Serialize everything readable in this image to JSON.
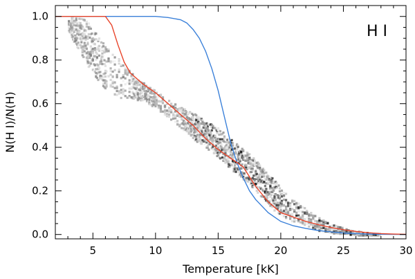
{
  "chart_data": {
    "type": "line",
    "title": "",
    "species_label": "H I",
    "xlabel": "Temperature [kK]",
    "ylabel": "N(H I)/N(H)",
    "xlim": [
      2,
      30
    ],
    "ylim": [
      -0.02,
      1.05
    ],
    "x_ticks": [
      5,
      10,
      15,
      20,
      25,
      30
    ],
    "y_ticks": [
      0.0,
      0.2,
      0.4,
      0.6,
      0.8,
      1.0
    ],
    "x_tick_labels": [
      "5",
      "10",
      "15",
      "20",
      "25",
      "30"
    ],
    "y_tick_labels": [
      "0.0",
      "0.2",
      "0.4",
      "0.6",
      "0.8",
      "1.0"
    ],
    "grid": false,
    "legend": "none",
    "series": [
      {
        "color": "#3a80d9",
        "x": [
          2.0,
          4,
          6,
          8,
          10,
          11,
          12,
          12.5,
          13,
          13.5,
          14,
          14.5,
          15,
          15.5,
          16,
          16.5,
          17,
          17.5,
          18,
          19,
          20,
          21,
          22,
          23,
          24,
          25,
          26,
          27,
          28,
          29,
          30
        ],
        "y": [
          1.0,
          1.0,
          1.0,
          1.0,
          1.0,
          0.995,
          0.985,
          0.97,
          0.94,
          0.9,
          0.84,
          0.76,
          0.66,
          0.54,
          0.42,
          0.33,
          0.26,
          0.2,
          0.16,
          0.1,
          0.06,
          0.04,
          0.028,
          0.018,
          0.012,
          0.007,
          0.004,
          0.002,
          0.001,
          0.0005,
          0.0
        ]
      },
      {
        "color": "#e8442a",
        "x": [
          2.0,
          4,
          6.0,
          6.5,
          7.0,
          7.5,
          8.0,
          9.0,
          10,
          11,
          12,
          13,
          14,
          15,
          16,
          17,
          18,
          19,
          20,
          21,
          22,
          23,
          24,
          25,
          26,
          27,
          28,
          29,
          30
        ],
        "y": [
          1.0,
          1.0,
          1.0,
          0.96,
          0.87,
          0.79,
          0.74,
          0.69,
          0.65,
          0.6,
          0.55,
          0.5,
          0.44,
          0.39,
          0.35,
          0.31,
          0.22,
          0.15,
          0.1,
          0.08,
          0.06,
          0.045,
          0.032,
          0.022,
          0.014,
          0.008,
          0.004,
          0.002,
          0.001
        ]
      }
    ],
    "scatter_cloud": {
      "style": "grayscale density",
      "x": [
        3,
        3.5,
        4,
        4.5,
        5,
        5.5,
        6,
        7,
        8,
        8.5,
        9,
        9.5,
        10,
        11,
        12,
        12.5,
        13,
        13.5,
        14,
        14.5,
        15,
        15.5,
        16,
        16.5,
        17,
        17.5,
        18,
        18.5,
        19,
        19.5,
        20,
        21,
        22,
        23,
        24,
        25,
        26,
        27,
        28
      ],
      "y_center": [
        0.97,
        0.95,
        0.92,
        0.88,
        0.84,
        0.8,
        0.77,
        0.72,
        0.69,
        0.67,
        0.66,
        0.64,
        0.62,
        0.58,
        0.54,
        0.52,
        0.5,
        0.48,
        0.46,
        0.44,
        0.42,
        0.4,
        0.37,
        0.35,
        0.32,
        0.3,
        0.27,
        0.24,
        0.21,
        0.18,
        0.15,
        0.11,
        0.08,
        0.05,
        0.03,
        0.02,
        0.01,
        0.005,
        0.002
      ],
      "spread": [
        0.04,
        0.07,
        0.09,
        0.1,
        0.1,
        0.1,
        0.1,
        0.09,
        0.06,
        0.05,
        0.04,
        0.04,
        0.04,
        0.04,
        0.05,
        0.05,
        0.06,
        0.06,
        0.06,
        0.07,
        0.07,
        0.07,
        0.07,
        0.07,
        0.07,
        0.07,
        0.07,
        0.07,
        0.07,
        0.07,
        0.06,
        0.05,
        0.04,
        0.03,
        0.02,
        0.015,
        0.01,
        0.006,
        0.004
      ]
    }
  }
}
